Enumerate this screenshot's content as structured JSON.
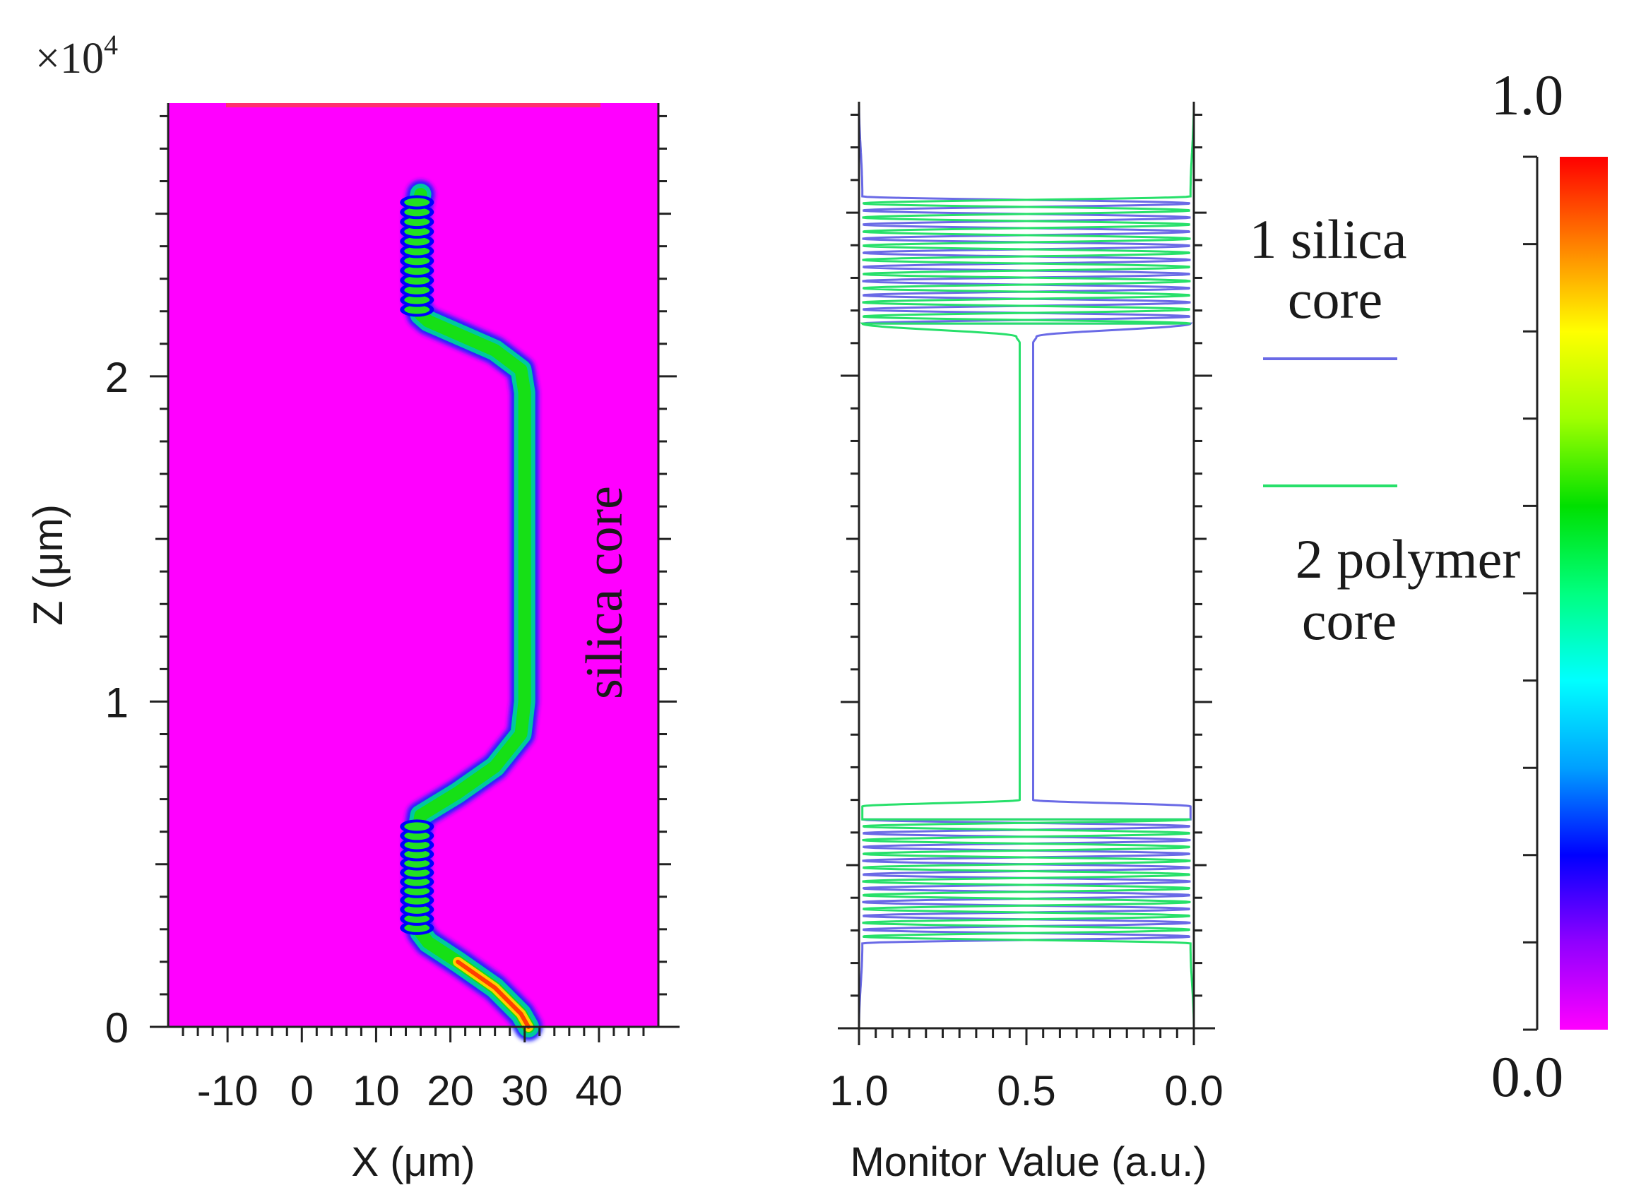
{
  "colors": {
    "background": "#ff00ff",
    "silica": "#6a6ae6",
    "polymer": "#27e06a",
    "axis": "#222222"
  },
  "chart_data": [
    {
      "type": "heatmap",
      "title": "",
      "exponent_label": "×10",
      "exponent_power": "4",
      "xlabel": "X (μm)",
      "ylabel": "Z (μm)",
      "xlim": [
        -18,
        48
      ],
      "ylim": [
        0,
        28400
      ],
      "xticks": [
        -10,
        0,
        10,
        20,
        30,
        40
      ],
      "xtick_labels": [
        "-10",
        "0",
        "10",
        "20",
        "30",
        "40"
      ],
      "yticks": [
        0,
        10000,
        20000
      ],
      "ytick_labels": [
        "0",
        "1",
        "2"
      ],
      "annotation": "silica core",
      "beam_path": {
        "x": [
          30.5,
          29.5,
          26,
          21,
          17,
          16,
          15.5,
          15.5,
          15.5,
          16,
          21,
          26,
          29.5,
          30,
          30,
          30,
          29.5,
          26,
          21,
          17,
          16,
          15.5,
          15.5,
          15.5,
          16
        ],
        "z": [
          0,
          400,
          1200,
          2000,
          2600,
          2900,
          3300,
          4500,
          5800,
          6500,
          7200,
          8000,
          9000,
          10000,
          15000,
          19500,
          20200,
          20800,
          21300,
          21700,
          21900,
          22300,
          23600,
          25000,
          25600
        ]
      },
      "coupling_regions": [
        {
          "z_start": 2900,
          "z_end": 6300
        },
        {
          "z_start": 21900,
          "z_end": 25500
        }
      ]
    },
    {
      "type": "line",
      "title": "",
      "xlabel": "Monitor Value (a.u.)",
      "ylabel": "",
      "xlim": [
        1.0,
        0.0
      ],
      "ylim": [
        0,
        28400
      ],
      "xticks": [
        1.0,
        0.5,
        0.0
      ],
      "xtick_labels": [
        "1.0",
        "0.5",
        "0.0"
      ],
      "series": [
        {
          "name": "1 silica core",
          "z": [
            0,
            2600,
            6400,
            6800,
            7000,
            21000,
            21200,
            21600,
            25500,
            28400
          ],
          "values": [
            1.0,
            0.99,
            0.01,
            0.01,
            0.48,
            0.48,
            0.47,
            0.01,
            0.99,
            1.0
          ]
        },
        {
          "name": "2 polymer core",
          "z": [
            0,
            2600,
            6400,
            6800,
            7000,
            21000,
            21200,
            21600,
            25500,
            28400
          ],
          "values": [
            0.0,
            0.01,
            0.99,
            0.99,
            0.52,
            0.52,
            0.53,
            0.99,
            0.01,
            0.0
          ]
        }
      ],
      "legend": [
        {
          "line1": "1 silica",
          "line2": "core"
        },
        {
          "line1": "2 polymer",
          "line2": "core"
        }
      ],
      "oscillation_regions": [
        {
          "z_start": 2600,
          "z_end": 6400,
          "cycles": 9
        },
        {
          "z_start": 21600,
          "z_end": 25500,
          "cycles": 9
        }
      ]
    }
  ],
  "colorbar": {
    "max_label": "1.0",
    "min_label": "0.0",
    "min": 0.0,
    "max": 1.0,
    "tick_count": 10,
    "stops": [
      "#ff00ff",
      "#9000ff",
      "#0000ff",
      "#00a0ff",
      "#00ffff",
      "#00ff80",
      "#00e000",
      "#a0ff00",
      "#ffff00",
      "#ff8000",
      "#ff0000"
    ]
  }
}
